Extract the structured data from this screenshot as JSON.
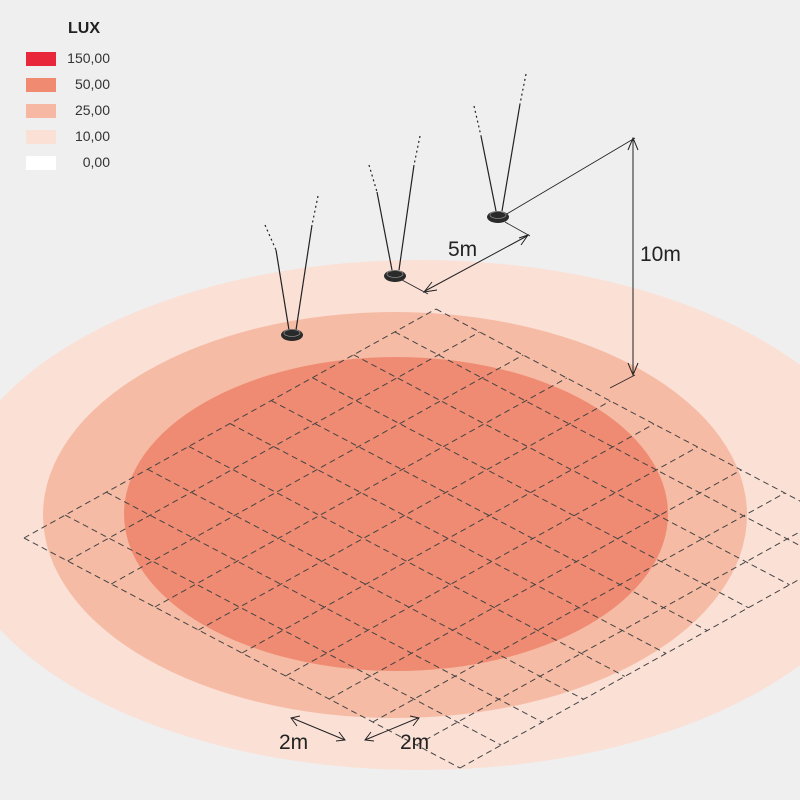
{
  "legend": {
    "title": "LUX",
    "items": [
      {
        "label": "150,00",
        "color": "#e8283a"
      },
      {
        "label": "50,00",
        "color": "#f08a70"
      },
      {
        "label": "25,00",
        "color": "#f6b8a2"
      },
      {
        "label": "10,00",
        "color": "#fbe0d6"
      },
      {
        "label": "0,00",
        "color": "#ffffff"
      }
    ]
  },
  "zones": {
    "outer_color": "#fbe0d6",
    "middle_color": "#f6bba5",
    "inner_color": "#ef8b72"
  },
  "dimensions": {
    "spacing": "5m",
    "height": "10m",
    "grid_x": "2m",
    "grid_y": "2m"
  },
  "luminaires": [
    {
      "name": "luminaire-1"
    },
    {
      "name": "luminaire-2"
    },
    {
      "name": "luminaire-3"
    }
  ]
}
